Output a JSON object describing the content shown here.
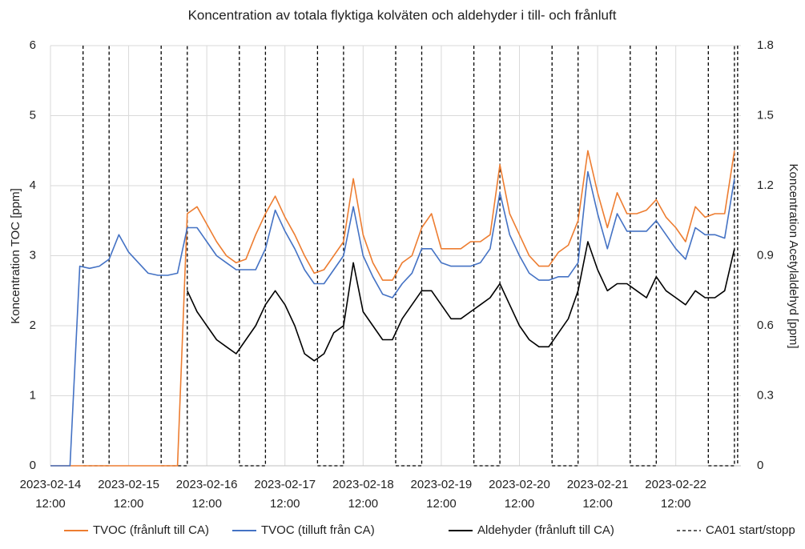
{
  "chart_data": {
    "type": "line",
    "title": "Koncentration av totala flyktiga kolväten och aldehyder i till- och frånluft",
    "y_label": "Koncentration TOC [ppm]",
    "y2_label": "Koncentration Acetylaldehyd [ppm]",
    "ylim": [
      0,
      6
    ],
    "yticks": [
      0,
      1,
      2,
      3,
      4,
      5,
      6
    ],
    "y2lim": [
      0,
      1.8
    ],
    "y2ticks": [
      0,
      0.3,
      0.6,
      0.9,
      1.2,
      1.5,
      1.8
    ],
    "xlim": [
      "2023-02-14 12:00",
      "2023-02-23 08:00"
    ],
    "xticks": [
      {
        "value": "2023-02-14 12:00",
        "label": [
          "2023-02-14",
          "12:00"
        ]
      },
      {
        "value": "2023-02-15 12:00",
        "label": [
          "2023-02-15",
          "12:00"
        ]
      },
      {
        "value": "2023-02-16 12:00",
        "label": [
          "2023-02-16",
          "12:00"
        ]
      },
      {
        "value": "2023-02-17 12:00",
        "label": [
          "2023-02-17",
          "12:00"
        ]
      },
      {
        "value": "2023-02-18 12:00",
        "label": [
          "2023-02-18",
          "12:00"
        ]
      },
      {
        "value": "2023-02-19 12:00",
        "label": [
          "2023-02-19",
          "12:00"
        ]
      },
      {
        "value": "2023-02-20 12:00",
        "label": [
          "2023-02-20",
          "12:00"
        ]
      },
      {
        "value": "2023-02-21 12:00",
        "label": [
          "2023-02-21",
          "12:00"
        ]
      },
      {
        "value": "2023-02-22 12:00",
        "label": [
          "2023-02-22",
          "12:00"
        ]
      }
    ],
    "grid": true,
    "legend": "bottom",
    "x": [
      "2023-02-14 12:00",
      "2023-02-14 15:00",
      "2023-02-14 18:00",
      "2023-02-14 21:00",
      "2023-02-15 00:00",
      "2023-02-15 03:00",
      "2023-02-15 06:00",
      "2023-02-15 09:00",
      "2023-02-15 12:00",
      "2023-02-15 15:00",
      "2023-02-15 18:00",
      "2023-02-15 21:00",
      "2023-02-16 00:00",
      "2023-02-16 03:00",
      "2023-02-16 06:00",
      "2023-02-16 09:00",
      "2023-02-16 12:00",
      "2023-02-16 15:00",
      "2023-02-16 18:00",
      "2023-02-16 21:00",
      "2023-02-17 00:00",
      "2023-02-17 03:00",
      "2023-02-17 06:00",
      "2023-02-17 09:00",
      "2023-02-17 12:00",
      "2023-02-17 15:00",
      "2023-02-17 18:00",
      "2023-02-17 21:00",
      "2023-02-18 00:00",
      "2023-02-18 03:00",
      "2023-02-18 06:00",
      "2023-02-18 09:00",
      "2023-02-18 12:00",
      "2023-02-18 15:00",
      "2023-02-18 18:00",
      "2023-02-18 21:00",
      "2023-02-19 00:00",
      "2023-02-19 03:00",
      "2023-02-19 06:00",
      "2023-02-19 09:00",
      "2023-02-19 12:00",
      "2023-02-19 15:00",
      "2023-02-19 18:00",
      "2023-02-19 21:00",
      "2023-02-20 00:00",
      "2023-02-20 03:00",
      "2023-02-20 06:00",
      "2023-02-20 09:00",
      "2023-02-20 12:00",
      "2023-02-20 15:00",
      "2023-02-20 18:00",
      "2023-02-20 21:00",
      "2023-02-21 00:00",
      "2023-02-21 03:00",
      "2023-02-21 06:00",
      "2023-02-21 09:00",
      "2023-02-21 12:00",
      "2023-02-21 15:00",
      "2023-02-21 18:00",
      "2023-02-21 21:00",
      "2023-02-22 00:00",
      "2023-02-22 03:00",
      "2023-02-22 06:00",
      "2023-02-22 09:00",
      "2023-02-22 12:00",
      "2023-02-22 15:00",
      "2023-02-22 18:00",
      "2023-02-22 21:00",
      "2023-02-23 00:00",
      "2023-02-23 03:00",
      "2023-02-23 06:00"
    ],
    "series": [
      {
        "name": "TVOC (frånluft till CA)",
        "color": "#ed7d31",
        "values": [
          0,
          0,
          0,
          0,
          0,
          0,
          0,
          0,
          0,
          0,
          0,
          0,
          0,
          0,
          3.6,
          3.7,
          3.45,
          3.2,
          3.0,
          2.9,
          2.95,
          3.3,
          3.6,
          3.85,
          3.55,
          3.3,
          3.0,
          2.75,
          2.8,
          3.0,
          3.2,
          4.1,
          3.3,
          2.9,
          2.65,
          2.65,
          2.9,
          3.0,
          3.4,
          3.6,
          3.1,
          3.1,
          3.1,
          3.2,
          3.2,
          3.3,
          4.3,
          3.6,
          3.3,
          3.0,
          2.85,
          2.85,
          3.05,
          3.15,
          3.5,
          4.5,
          3.9,
          3.4,
          3.9,
          3.6,
          3.6,
          3.65,
          3.8,
          3.55,
          3.4,
          3.2,
          3.7,
          3.55,
          3.6,
          3.6,
          4.5
        ]
      },
      {
        "name": "TVOC (tilluft från CA)",
        "color": "#4472c4",
        "values": [
          0,
          0,
          0,
          2.85,
          2.82,
          2.85,
          2.95,
          3.3,
          3.05,
          2.9,
          2.75,
          2.72,
          2.72,
          2.75,
          3.4,
          3.4,
          3.2,
          3.0,
          2.9,
          2.8,
          2.8,
          2.8,
          3.1,
          3.65,
          3.35,
          3.1,
          2.8,
          2.6,
          2.6,
          2.8,
          3.0,
          3.7,
          3.0,
          2.7,
          2.45,
          2.4,
          2.6,
          2.75,
          3.1,
          3.1,
          2.9,
          2.85,
          2.85,
          2.85,
          2.9,
          3.1,
          3.9,
          3.3,
          3.0,
          2.75,
          2.65,
          2.65,
          2.7,
          2.7,
          2.9,
          4.2,
          3.6,
          3.1,
          3.6,
          3.35,
          3.35,
          3.35,
          3.5,
          3.3,
          3.1,
          2.95,
          3.4,
          3.3,
          3.3,
          3.25,
          4.1
        ]
      },
      {
        "name": "Aldehyder (frånluft till CA)",
        "color": "#000000",
        "axis": "y2",
        "values": [
          null,
          null,
          null,
          null,
          null,
          null,
          null,
          null,
          null,
          null,
          null,
          null,
          null,
          null,
          0.75,
          0.66,
          0.6,
          0.54,
          0.51,
          0.48,
          0.54,
          0.6,
          0.69,
          0.75,
          0.69,
          0.6,
          0.48,
          0.45,
          0.48,
          0.57,
          0.6,
          0.87,
          0.66,
          0.6,
          0.54,
          0.54,
          0.63,
          0.69,
          0.75,
          0.75,
          0.69,
          0.63,
          0.63,
          0.66,
          0.69,
          0.72,
          0.78,
          0.69,
          0.6,
          0.54,
          0.51,
          0.51,
          0.57,
          0.63,
          0.75,
          0.96,
          0.84,
          0.75,
          0.78,
          0.78,
          0.75,
          0.72,
          0.81,
          0.75,
          0.72,
          0.69,
          0.75,
          0.72,
          0.72,
          0.75,
          0.93
        ]
      },
      {
        "name": "CA01 start/stopp",
        "color": "#000000",
        "dashed": true,
        "x": [
          "2023-02-14 22:00",
          "2023-02-14 22:00",
          "2023-02-15 06:00",
          "2023-02-15 06:00",
          null,
          "2023-02-15 22:00",
          "2023-02-15 22:00",
          "2023-02-16 06:00",
          "2023-02-16 06:00",
          null,
          "2023-02-16 22:00",
          "2023-02-16 22:00",
          "2023-02-17 06:00",
          "2023-02-17 06:00",
          null,
          "2023-02-17 22:00",
          "2023-02-17 22:00",
          "2023-02-18 06:00",
          "2023-02-18 06:00",
          null,
          "2023-02-18 22:00",
          "2023-02-18 22:00",
          "2023-02-19 06:00",
          "2023-02-19 06:00",
          null,
          "2023-02-19 22:00",
          "2023-02-19 22:00",
          "2023-02-20 06:00",
          "2023-02-20 06:00",
          null,
          "2023-02-20 22:00",
          "2023-02-20 22:00",
          "2023-02-21 06:00",
          "2023-02-21 06:00",
          null,
          "2023-02-21 22:00",
          "2023-02-21 22:00",
          "2023-02-22 06:00",
          "2023-02-22 06:00",
          null,
          "2023-02-22 22:00",
          "2023-02-22 22:00",
          "2023-02-23 06:00",
          "2023-02-23 06:00",
          null,
          "2023-02-23 07:00",
          "2023-02-23 07:00"
        ],
        "values": [
          6,
          0,
          0,
          6,
          null,
          6,
          0,
          0,
          6,
          null,
          6,
          0,
          0,
          6,
          null,
          6,
          0,
          0,
          6,
          null,
          6,
          0,
          0,
          6,
          null,
          6,
          0,
          0,
          6,
          null,
          6,
          0,
          0,
          6,
          null,
          6,
          0,
          0,
          6,
          null,
          6,
          0,
          0,
          6,
          null,
          6,
          0
        ]
      }
    ]
  }
}
